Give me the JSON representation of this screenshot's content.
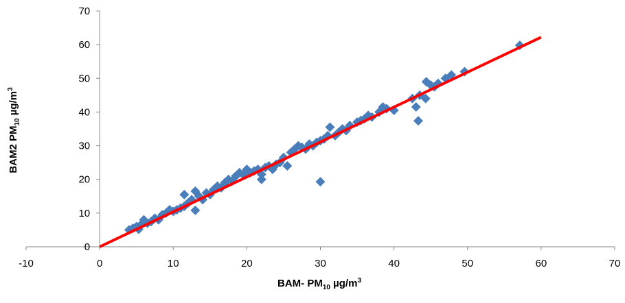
{
  "chart_data": {
    "type": "scatter",
    "x_label": [
      "BAM- PM",
      "10",
      " µg/m",
      "3"
    ],
    "y_label": [
      "BAM2 PM",
      "10",
      " µg/m",
      "3"
    ],
    "xlim": [
      -10,
      70
    ],
    "xticks": [
      -10,
      0,
      10,
      20,
      30,
      40,
      50,
      60,
      70
    ],
    "ylim": [
      0,
      70
    ],
    "yticks": [
      0,
      10,
      20,
      30,
      40,
      50,
      60,
      70
    ],
    "marker_color": "#4a7ebb",
    "x": [
      4,
      4.5,
      5,
      5.3,
      5.8,
      6,
      6.5,
      7,
      7.5,
      8,
      8.5,
      9,
      9.5,
      10,
      10.5,
      11,
      11.5,
      11.5,
      12,
      12.5,
      13,
      13,
      13.5,
      14,
      14.5,
      15,
      15.5,
      16,
      16.5,
      17,
      17.5,
      18,
      18.5,
      19,
      19.5,
      20,
      20.5,
      21,
      21.5,
      22,
      22,
      22.5,
      23,
      23.5,
      24,
      24.5,
      25,
      25.5,
      26,
      26.5,
      27,
      27.5,
      28,
      28.5,
      29,
      29.5,
      30,
      30,
      30.5,
      31,
      31.3,
      32,
      32.5,
      33,
      33.5,
      34,
      35,
      35.5,
      36,
      36.5,
      37,
      38,
      38.5,
      39,
      40,
      42.5,
      43,
      43.3,
      43.5,
      44.3,
      44.4,
      45,
      45.5,
      46,
      47,
      47.8,
      49.6,
      57.1
    ],
    "values": [
      5,
      5.5,
      6,
      5.2,
      7,
      8,
      7,
      7.5,
      8.5,
      8,
      9.5,
      10,
      11,
      10.5,
      11,
      11.5,
      15.5,
      12,
      13,
      14,
      16.5,
      10.8,
      15,
      14,
      16,
      15.5,
      17,
      18,
      17.5,
      19,
      20,
      19.5,
      21,
      22,
      21.5,
      23,
      22,
      22.5,
      23,
      20,
      21.5,
      23.5,
      24,
      23,
      24.5,
      25,
      26.5,
      24,
      28,
      29,
      30,
      29.5,
      29,
      30.5,
      30,
      31,
      19.3,
      31.5,
      32,
      33,
      35.5,
      33,
      34,
      35,
      34.5,
      36,
      37,
      37.5,
      38,
      39,
      38.5,
      40,
      41.5,
      41,
      40.5,
      44,
      41.5,
      37.4,
      45,
      44,
      49,
      48,
      47.5,
      48.5,
      50,
      51,
      52,
      59.8
    ],
    "trendline": {
      "x": [
        0,
        60
      ],
      "values": [
        0,
        62.2
      ],
      "color": "#ff0000"
    }
  }
}
